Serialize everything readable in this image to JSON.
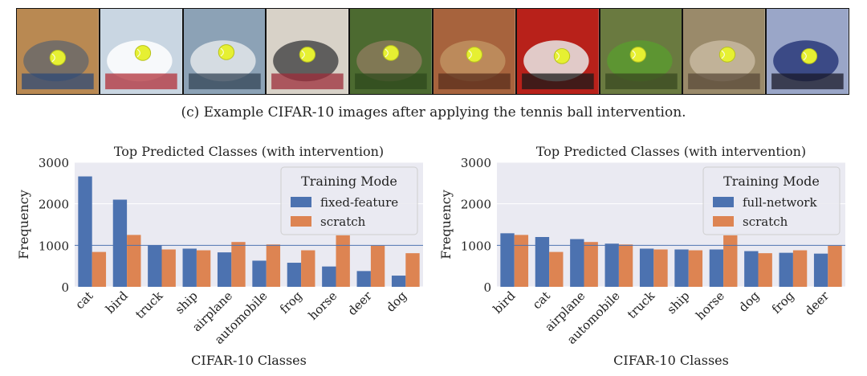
{
  "figure": {
    "caption": "(c) Example CIFAR-10 images after applying the tennis ball intervention."
  },
  "thumbnails": [
    {
      "subject": "cat",
      "bg": "#b98952",
      "fg": "#6a6a6a",
      "accent": "#2d4a77"
    },
    {
      "subject": "ship",
      "bg": "#c9d6e2",
      "fg": "#ffffff",
      "accent": "#b2303a"
    },
    {
      "subject": "ship",
      "bg": "#8ca2b6",
      "fg": "#e2e6ea",
      "accent": "#334455"
    },
    {
      "subject": "airplane",
      "bg": "#d8d2c8",
      "fg": "#4a4a4a",
      "accent": "#9c2c3a"
    },
    {
      "subject": "frog",
      "bg": "#4c6a30",
      "fg": "#8a7a5a",
      "accent": "#2e4a1c"
    },
    {
      "subject": "frog",
      "bg": "#a7633d",
      "fg": "#c09060",
      "accent": "#5a2e1c"
    },
    {
      "subject": "automobile",
      "bg": "#b8211a",
      "fg": "#e8e8e8",
      "accent": "#1a1a1a"
    },
    {
      "subject": "frog",
      "bg": "#6a7a40",
      "fg": "#5a9a30",
      "accent": "#3a4a20"
    },
    {
      "subject": "cat",
      "bg": "#9a8a6a",
      "fg": "#c8b8a0",
      "accent": "#5a4a3a"
    },
    {
      "subject": "automobile",
      "bg": "#9aa6c8",
      "fg": "#2a3a7a",
      "accent": "#1a1a2a"
    }
  ],
  "chart_data": [
    {
      "type": "bar",
      "title": "Top Predicted Classes (with intervention)",
      "xlabel": "CIFAR-10 Classes",
      "ylabel": "Frequency",
      "ylim": [
        0,
        3000
      ],
      "yticks": [
        0,
        1000,
        2000,
        3000
      ],
      "reference_line": 1000,
      "legend_title": "Training Mode",
      "legend_position": "top-right",
      "categories": [
        "cat",
        "bird",
        "truck",
        "ship",
        "airplane",
        "automobile",
        "frog",
        "horse",
        "deer",
        "dog"
      ],
      "series": [
        {
          "name": "fixed-feature",
          "color": "#4c72b0",
          "values": [
            2660,
            2100,
            1000,
            920,
            830,
            630,
            580,
            490,
            380,
            270
          ]
        },
        {
          "name": "scratch",
          "color": "#dd8452",
          "values": [
            840,
            1250,
            900,
            880,
            1080,
            1020,
            880,
            1240,
            990,
            810
          ]
        }
      ]
    },
    {
      "type": "bar",
      "title": "Top Predicted Classes (with intervention)",
      "xlabel": "CIFAR-10 Classes",
      "ylabel": "Frequency",
      "ylim": [
        0,
        3000
      ],
      "yticks": [
        0,
        1000,
        2000,
        3000
      ],
      "reference_line": 1000,
      "legend_title": "Training Mode",
      "legend_position": "top-right",
      "categories": [
        "bird",
        "cat",
        "airplane",
        "automobile",
        "truck",
        "ship",
        "horse",
        "dog",
        "frog",
        "deer"
      ],
      "series": [
        {
          "name": "full-network",
          "color": "#4c72b0",
          "values": [
            1290,
            1200,
            1150,
            1040,
            920,
            900,
            900,
            860,
            820,
            800
          ]
        },
        {
          "name": "scratch",
          "color": "#dd8452",
          "values": [
            1250,
            840,
            1080,
            1020,
            900,
            880,
            1240,
            810,
            880,
            990
          ]
        }
      ]
    }
  ]
}
